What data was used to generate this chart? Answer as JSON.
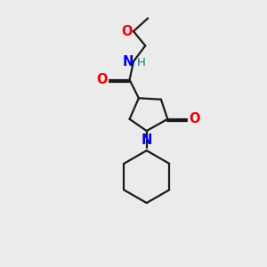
{
  "bg_color": "#ebebeb",
  "bond_color": "#1a1a1a",
  "N_color": "#0000ee",
  "O_color": "#ee0000",
  "H_color": "#008080",
  "line_width": 1.6,
  "font_size": 10.5,
  "xlim": [
    0,
    6
  ],
  "ylim": [
    0,
    10
  ]
}
